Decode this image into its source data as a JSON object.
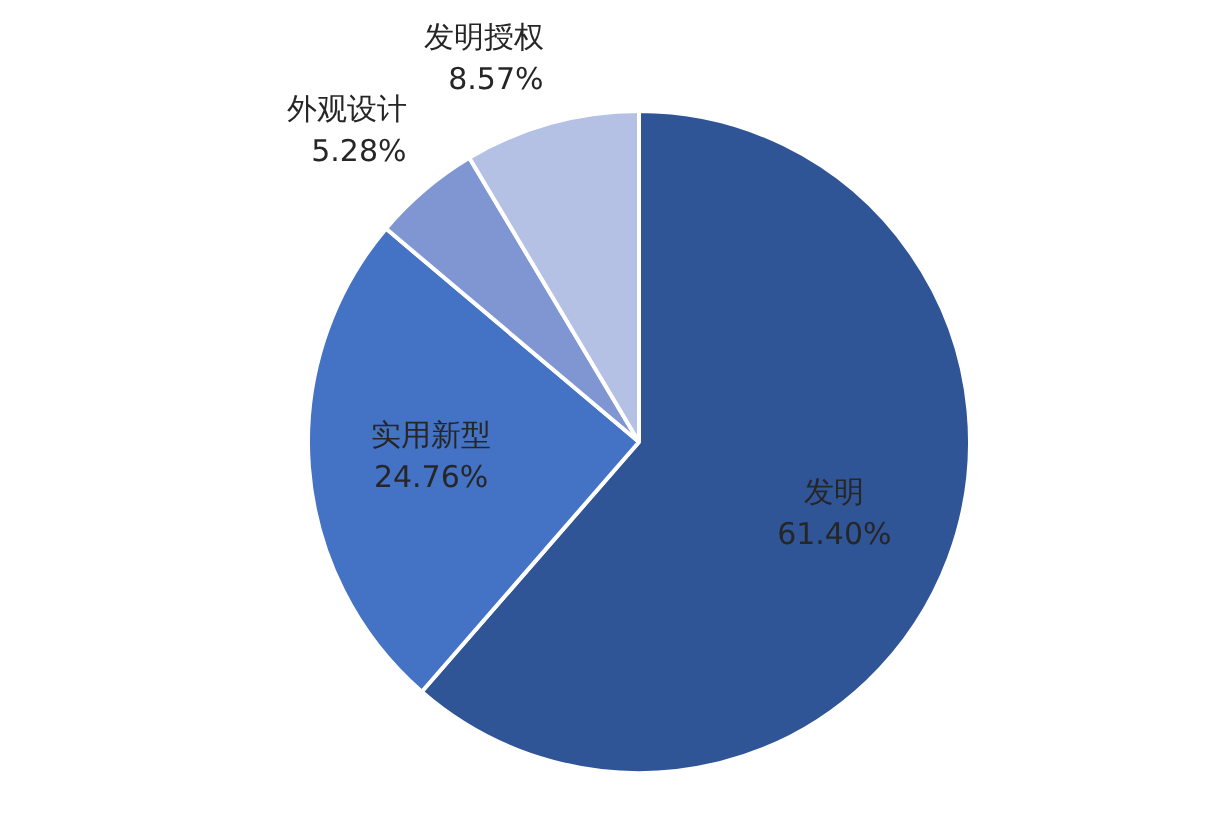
{
  "chart_data": {
    "type": "pie",
    "categories": [
      "发明",
      "实用新型",
      "外观设计",
      "发明授权"
    ],
    "values": [
      61.4,
      24.76,
      5.28,
      8.57
    ],
    "value_labels": [
      "61.40%",
      "24.76%",
      "5.28%",
      "8.57%"
    ],
    "colors": [
      "#2f5597",
      "#4472c4",
      "#7f96d3",
      "#b4c0e4"
    ],
    "legend": false
  }
}
